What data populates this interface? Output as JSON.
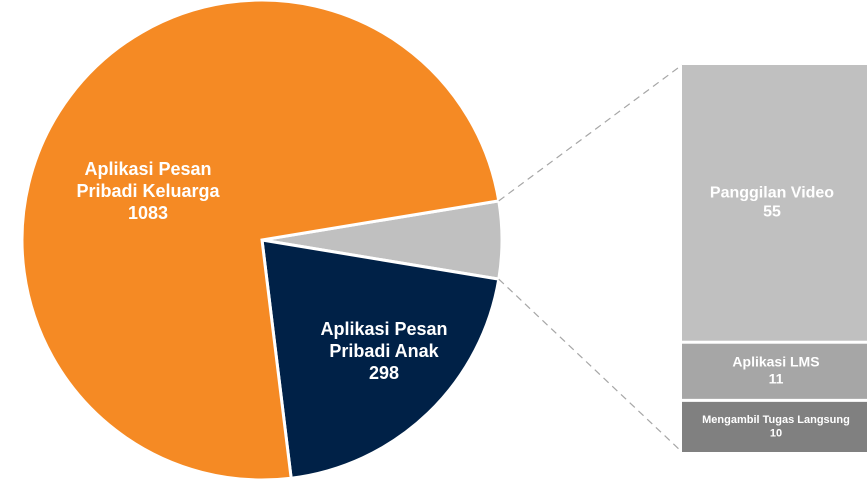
{
  "chart_data": {
    "type": "pie-of-bar",
    "pie": {
      "categories": [
        "Aplikasi Pesan Pribadi Anak",
        "Aplikasi Pesan Pribadi Keluarga"
      ],
      "values": [
        298,
        1083
      ],
      "colors": [
        "#002147",
        "#f58a24"
      ]
    },
    "bar": {
      "categories": [
        "Panggilan Video",
        "Aplikasi LMS",
        "Mengambil Tugas Langsung"
      ],
      "values": [
        55,
        11,
        10
      ],
      "colors": [
        "#c0c0c0",
        "#a6a6a6",
        "#808080"
      ]
    }
  }
}
